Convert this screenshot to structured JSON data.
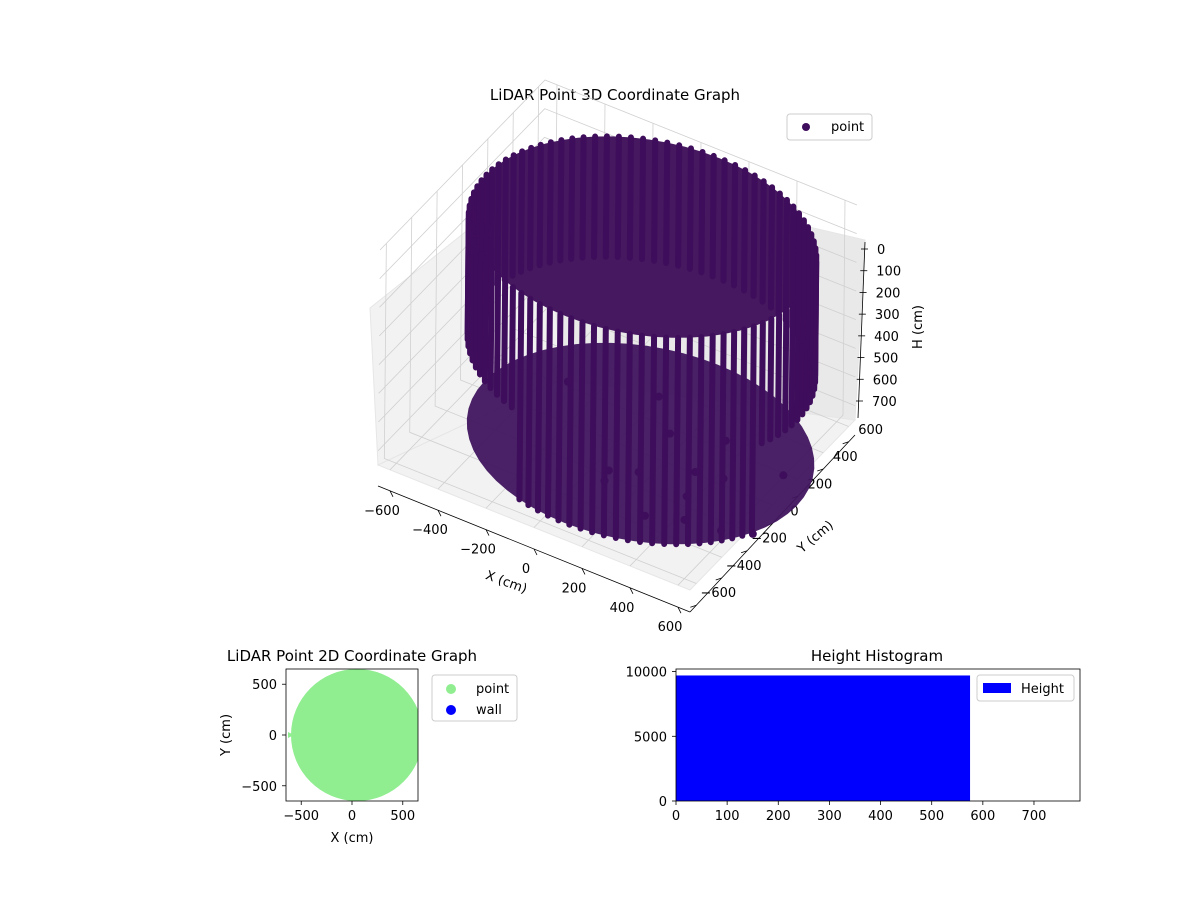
{
  "chart_data": [
    {
      "type": "scatter",
      "projection": "3d",
      "title": "LiDAR Point 3D Coordinate Graph",
      "xlabel": "X (cm)",
      "ylabel": "Y (cm)",
      "zlabel": "H (cm)",
      "xlim": [
        -650,
        650
      ],
      "ylim": [
        -650,
        650
      ],
      "zlim": [
        750,
        0
      ],
      "zaxis_inverted": true,
      "xticks": [
        -600,
        -400,
        -200,
        0,
        200,
        400,
        600
      ],
      "yticks": [
        -600,
        -400,
        -200,
        0,
        200,
        400,
        600
      ],
      "zticks": [
        0,
        100,
        200,
        300,
        400,
        500,
        600,
        700
      ],
      "series": [
        {
          "name": "point",
          "color": "#3e0d5b"
        }
      ],
      "shape": {
        "radius": 650,
        "h_min": 0,
        "h_max": 700
      },
      "legend": "top-right",
      "grid": true
    },
    {
      "type": "scatter",
      "title": "LiDAR Point 2D Coordinate Graph",
      "xlabel": "X (cm)",
      "ylabel": "Y (cm)",
      "xlim": [
        -650,
        650
      ],
      "ylim": [
        -650,
        650
      ],
      "xticks": [
        -500,
        0,
        500
      ],
      "yticks": [
        -500,
        0,
        500
      ],
      "series": [
        {
          "name": "point",
          "color": "#90ee90"
        },
        {
          "name": "wall",
          "color": "#0000ff"
        }
      ],
      "shape": {
        "center": [
          0,
          0
        ],
        "radius": 650
      },
      "legend": "outside-right",
      "grid": false
    },
    {
      "type": "bar",
      "title": "Height Histogram",
      "xlim": [
        0,
        790
      ],
      "ylim": [
        0,
        10200
      ],
      "xticks": [
        0,
        100,
        200,
        300,
        400,
        500,
        600,
        700
      ],
      "yticks": [
        0,
        5000,
        10000
      ],
      "series": [
        {
          "name": "Height",
          "color": "#0000ff"
        }
      ],
      "bins": [
        {
          "x0": 0,
          "x1": 575,
          "count": 9700
        }
      ],
      "legend": "top-right",
      "grid": false
    }
  ]
}
